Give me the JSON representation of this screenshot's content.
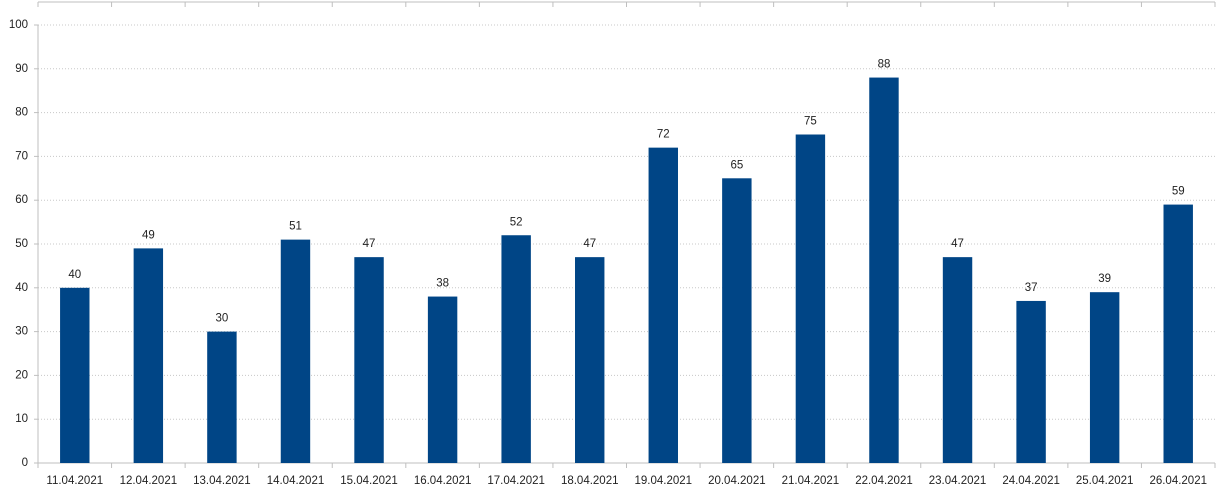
{
  "chart_data": {
    "type": "bar",
    "categories": [
      "11.04.2021",
      "12.04.2021",
      "13.04.2021",
      "14.04.2021",
      "15.04.2021",
      "16.04.2021",
      "17.04.2021",
      "18.04.2021",
      "19.04.2021",
      "20.04.2021",
      "21.04.2021",
      "22.04.2021",
      "23.04.2021",
      "24.04.2021",
      "25.04.2021",
      "26.04.2021"
    ],
    "values": [
      40,
      49,
      30,
      51,
      47,
      38,
      52,
      47,
      72,
      65,
      75,
      88,
      47,
      37,
      39,
      59
    ],
    "color": "#004586",
    "ylim": [
      0,
      100
    ],
    "yticks": [
      0,
      10,
      20,
      30,
      40,
      50,
      60,
      70,
      80,
      90,
      100
    ],
    "grid": true
  }
}
